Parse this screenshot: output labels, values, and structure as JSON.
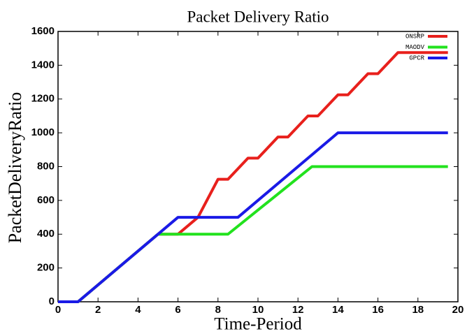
{
  "chart_data": {
    "type": "line",
    "title": "Packet Delivery Ratio",
    "x_label": "Time-Period",
    "y_label": "PacketDeliveryRatio",
    "xlim": [
      0,
      20
    ],
    "xticks": [
      0,
      2,
      4,
      6,
      8,
      10,
      12,
      14,
      16,
      18,
      20
    ],
    "ylim": [
      0,
      1600
    ],
    "yticks": [
      0,
      200,
      400,
      600,
      800,
      1000,
      1200,
      1400,
      1600
    ],
    "legend": "top-right",
    "series": [
      {
        "name": "ONSRP",
        "color": "#e8201c",
        "x": [
          0,
          1,
          5,
          6,
          7,
          8,
          8.5,
          9.5,
          10,
          11,
          11.5,
          12.5,
          13,
          14,
          14.5,
          15.5,
          16,
          17,
          19.5
        ],
        "values": [
          0,
          0,
          400,
          400,
          500,
          725,
          725,
          850,
          850,
          975,
          975,
          1100,
          1100,
          1225,
          1225,
          1350,
          1350,
          1475,
          1475
        ]
      },
      {
        "name": "MAODV",
        "color": "#22e21e",
        "x": [
          0,
          1,
          5,
          8.5,
          12.7,
          19.5
        ],
        "values": [
          0,
          0,
          400,
          400,
          800,
          800
        ]
      },
      {
        "name": "GPCR",
        "color": "#1a1ae6",
        "x": [
          0,
          1,
          6,
          9,
          14,
          19.5
        ],
        "values": [
          0,
          0,
          500,
          500,
          1000,
          1000
        ]
      }
    ]
  }
}
